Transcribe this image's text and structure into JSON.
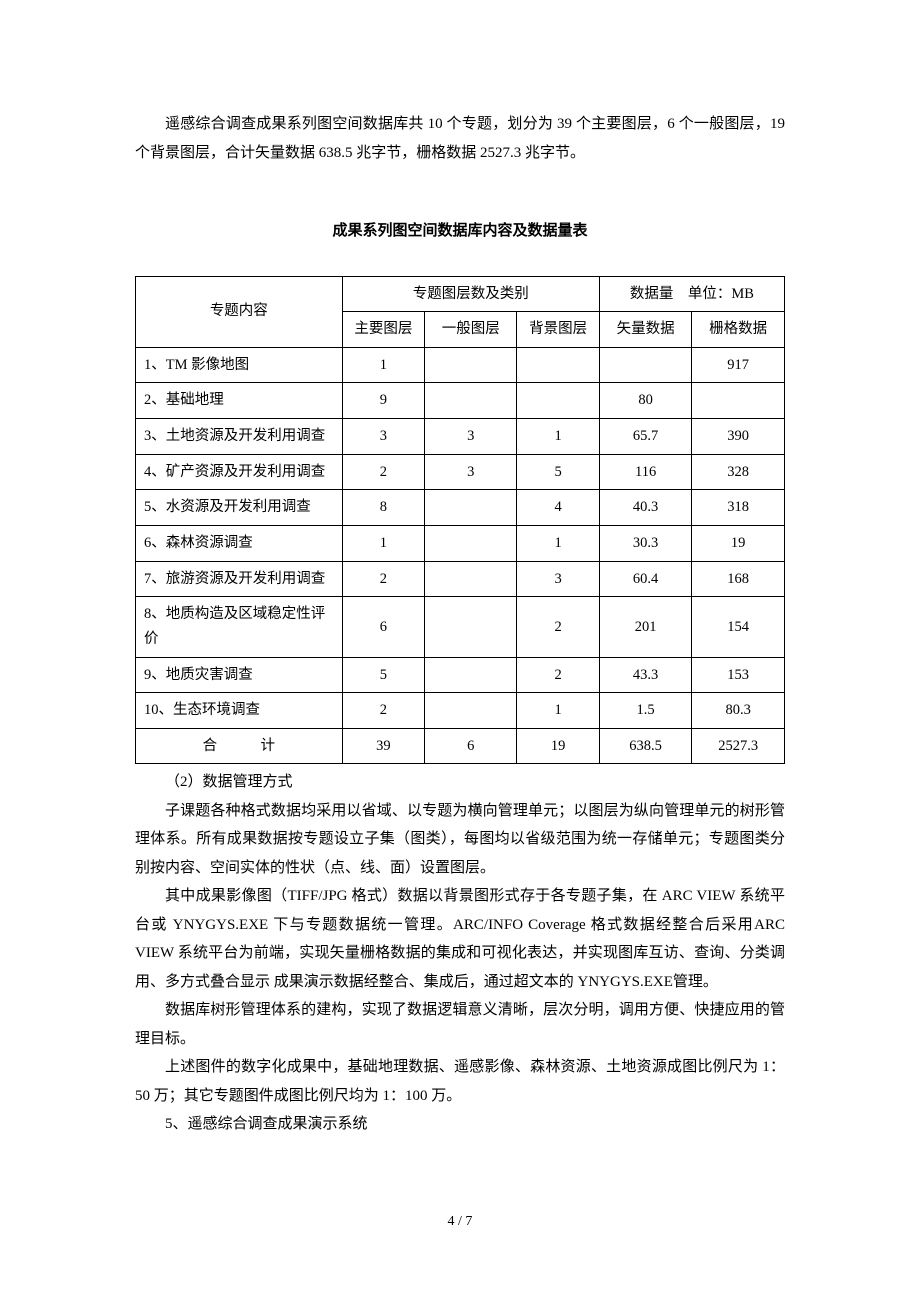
{
  "intro": "遥感综合调查成果系列图空间数据库共 10 个专题，划分为 39 个主要图层，6 个一般图层，19 个背景图层，合计矢量数据 638.5 兆字节，栅格数据 2527.3 兆字节。",
  "table_title": "成果系列图空间数据库内容及数据量表",
  "headers": {
    "col1": "专题内容",
    "col_group2": "专题图层数及类别",
    "col_group3": "数据量",
    "col_group3_unit": "单位：MB",
    "sub_main": "主要图层",
    "sub_general": "一般图层",
    "sub_bg": "背景图层",
    "sub_vec": "矢量数据",
    "sub_ras": "栅格数据"
  },
  "rows": [
    {
      "label": "1、TM 影像地图",
      "main": "1",
      "general": "",
      "bg": "",
      "vec": "",
      "ras": "917"
    },
    {
      "label": "2、基础地理",
      "main": "9",
      "general": "",
      "bg": "",
      "vec": "80",
      "ras": ""
    },
    {
      "label": "3、土地资源及开发利用调查",
      "main": "3",
      "general": "3",
      "bg": "1",
      "vec": "65.7",
      "ras": "390"
    },
    {
      "label": "4、矿产资源及开发利用调查",
      "main": "2",
      "general": "3",
      "bg": "5",
      "vec": "116",
      "ras": "328"
    },
    {
      "label": "5、水资源及开发利用调查",
      "main": "8",
      "general": "",
      "bg": "4",
      "vec": "40.3",
      "ras": "318"
    },
    {
      "label": "6、森林资源调查",
      "main": "1",
      "general": "",
      "bg": "1",
      "vec": "30.3",
      "ras": "19"
    },
    {
      "label": "7、旅游资源及开发利用调查",
      "main": "2",
      "general": "",
      "bg": "3",
      "vec": "60.4",
      "ras": "168"
    },
    {
      "label": "8、地质构造及区域稳定性评价",
      "main": "6",
      "general": "",
      "bg": "2",
      "vec": "201",
      "ras": "154"
    },
    {
      "label": "9、地质灾害调查",
      "main": "5",
      "general": "",
      "bg": "2",
      "vec": "43.3",
      "ras": "153"
    },
    {
      "label": "10、生态环境调查",
      "main": "2",
      "general": "",
      "bg": "1",
      "vec": "1.5",
      "ras": "80.3"
    }
  ],
  "total": {
    "label": "合　　　计",
    "main": "39",
    "general": "6",
    "bg": "19",
    "vec": "638.5",
    "ras": "2527.3"
  },
  "para1": "（2）数据管理方式",
  "para2": "子课题各种格式数据均采用以省域、以专题为横向管理单元；以图层为纵向管理单元的树形管理体系。所有成果数据按专题设立子集（图类），每图均以省级范围为统一存储单元；专题图类分别按内容、空间实体的性状（点、线、面）设置图层。",
  "para3": "其中成果影像图（TIFF/JPG 格式）数据以背景图形式存于各专题子集，在 ARC VIEW 系统平台或 YNYGYS.EXE 下与专题数据统一管理。ARC/INFO Coverage 格式数据经整合后采用ARC VIEW 系统平台为前端，实现矢量栅格数据的集成和可视化表达，并实现图库互访、查询、分类调用、多方式叠合显示 成果演示数据经整合、集成后，通过超文本的 YNYGYS.EXE管理。",
  "para4": "数据库树形管理体系的建构，实现了数据逻辑意义清晰，层次分明，调用方便、快捷应用的管理目标。",
  "para5": "上述图件的数字化成果中，基础地理数据、遥感影像、森林资源、土地资源成图比例尺为 1：50 万；其它专题图件成图比例尺均为 1：100 万。",
  "para6": "5、遥感综合调查成果演示系统",
  "page_number": "4 / 7"
}
